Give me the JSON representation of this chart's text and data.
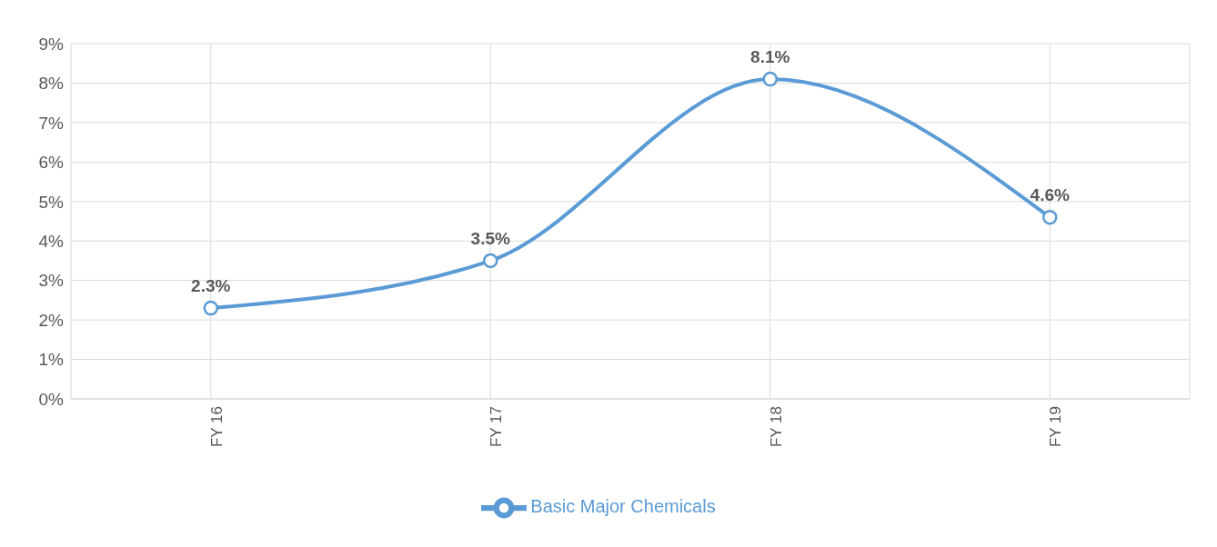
{
  "chart_data": {
    "type": "line",
    "categories": [
      "FY 16",
      "FY 17",
      "FY 18",
      "FY 19"
    ],
    "series": [
      {
        "name": "Basic Major Chemicals",
        "color": "#5b9bd5",
        "values": [
          2.3,
          3.5,
          8.1,
          4.6
        ],
        "value_labels": [
          "2.3%",
          "3.5%",
          "8.1%",
          "4.6%"
        ]
      }
    ],
    "ylim": [
      0,
      9
    ],
    "yticks": [
      {
        "value": 0,
        "label": "0%"
      },
      {
        "value": 1,
        "label": "1%"
      },
      {
        "value": 2,
        "label": "2%"
      },
      {
        "value": 3,
        "label": "3%"
      },
      {
        "value": 4,
        "label": "4%"
      },
      {
        "value": 5,
        "label": "5%"
      },
      {
        "value": 6,
        "label": "6%"
      },
      {
        "value": 7,
        "label": "7%"
      },
      {
        "value": 8,
        "label": "8%"
      },
      {
        "value": 9,
        "label": "9%"
      }
    ],
    "grid": true,
    "legend": "bottom",
    "marker": "circle",
    "line_style": "solid"
  }
}
